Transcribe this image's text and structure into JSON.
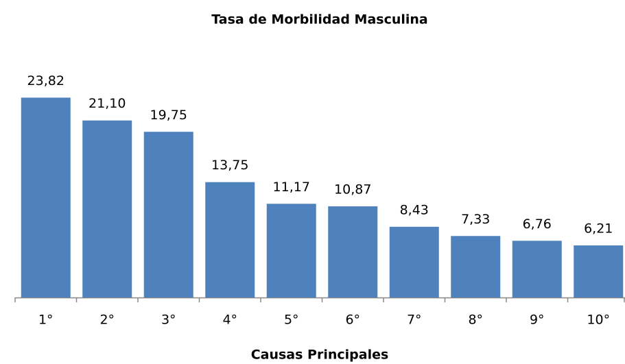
{
  "chart_data": {
    "type": "bar",
    "title": "Tasa de Morbilidad Masculina",
    "xlabel": "Causas Principales",
    "categories": [
      "1°",
      "2°",
      "3°",
      "4°",
      "5°",
      "6°",
      "7°",
      "8°",
      "9°",
      "10°"
    ],
    "values": [
      23.82,
      21.1,
      19.75,
      13.75,
      11.17,
      10.87,
      8.43,
      7.33,
      6.76,
      6.21
    ],
    "value_labels": [
      "23,82",
      "21,10",
      "19,75",
      "13,75",
      "11,17",
      "10,87",
      "8,43",
      "7,33",
      "6,76",
      "6,21"
    ],
    "color": "#4f81bd",
    "ylim": [
      0,
      25
    ]
  }
}
